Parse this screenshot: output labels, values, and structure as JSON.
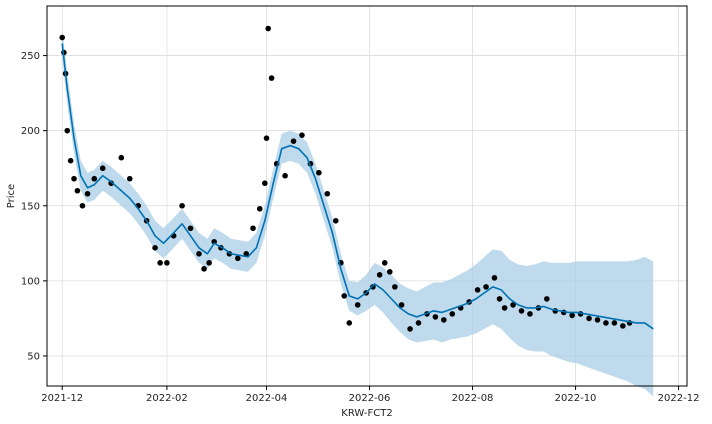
{
  "chart_data": {
    "type": "scatter",
    "title": "",
    "xlabel": "KRW-FCT2",
    "ylabel": "Price",
    "x_tick_labels": [
      "2021-12",
      "2022-02",
      "2022-04",
      "2022-06",
      "2022-08",
      "2022-10",
      "2022-12"
    ],
    "x_tick_values": [
      "2021-12-01",
      "2022-02-01",
      "2022-04-01",
      "2022-06-01",
      "2022-08-01",
      "2022-10-01",
      "2022-12-01"
    ],
    "y_tick_labels": [
      "50",
      "100",
      "150",
      "200",
      "250"
    ],
    "y_tick_values": [
      50,
      100,
      150,
      200,
      250
    ],
    "xlim": [
      "2021-11-22",
      "2022-12-06"
    ],
    "ylim": [
      30,
      283
    ],
    "grid": true,
    "colors": {
      "observed": "#000000",
      "forecast": "#0072B2",
      "interval": "#a8cde6"
    },
    "series": [
      {
        "kind": "observed",
        "x": [
          "2021-12-01",
          "2021-12-02",
          "2021-12-03",
          "2021-12-04",
          "2021-12-06",
          "2021-12-08",
          "2021-12-10",
          "2021-12-13",
          "2021-12-16",
          "2021-12-20",
          "2021-12-25",
          "2021-12-30",
          "2022-01-05",
          "2022-01-10",
          "2022-01-15",
          "2022-01-20",
          "2022-01-25",
          "2022-01-28",
          "2022-02-01",
          "2022-02-05",
          "2022-02-10",
          "2022-02-15",
          "2022-02-20",
          "2022-02-23",
          "2022-02-26",
          "2022-03-01",
          "2022-03-05",
          "2022-03-10",
          "2022-03-15",
          "2022-03-20",
          "2022-03-24",
          "2022-03-28",
          "2022-03-31",
          "2022-04-01",
          "2022-04-02",
          "2022-04-04",
          "2022-04-07",
          "2022-04-12",
          "2022-04-17",
          "2022-04-22",
          "2022-04-27",
          "2022-05-02",
          "2022-05-07",
          "2022-05-12",
          "2022-05-15",
          "2022-05-17",
          "2022-05-20",
          "2022-05-25",
          "2022-05-30",
          "2022-06-03",
          "2022-06-07",
          "2022-06-10",
          "2022-06-13",
          "2022-06-16",
          "2022-06-20",
          "2022-06-25",
          "2022-06-30",
          "2022-07-05",
          "2022-07-10",
          "2022-07-15",
          "2022-07-20",
          "2022-07-25",
          "2022-07-30",
          "2022-08-04",
          "2022-08-09",
          "2022-08-14",
          "2022-08-17",
          "2022-08-20",
          "2022-08-25",
          "2022-08-30",
          "2022-09-04",
          "2022-09-09",
          "2022-09-14",
          "2022-09-19",
          "2022-09-24",
          "2022-09-29",
          "2022-10-04",
          "2022-10-09",
          "2022-10-14",
          "2022-10-19",
          "2022-10-24",
          "2022-10-29",
          "2022-11-02"
        ],
        "y": [
          262,
          252,
          238,
          200,
          180,
          168,
          160,
          150,
          158,
          168,
          175,
          165,
          182,
          168,
          150,
          140,
          122,
          112,
          112,
          130,
          150,
          135,
          118,
          108,
          112,
          126,
          122,
          118,
          115,
          118,
          135,
          148,
          165,
          195,
          268,
          235,
          178,
          170,
          193,
          197,
          178,
          172,
          158,
          140,
          112,
          90,
          72,
          84,
          92,
          96,
          104,
          112,
          106,
          96,
          84,
          68,
          72,
          78,
          76,
          74,
          78,
          82,
          86,
          94,
          96,
          102,
          88,
          82,
          84,
          80,
          78,
          82,
          88,
          80,
          79,
          77,
          78,
          75,
          74,
          72,
          72,
          70,
          72
        ]
      },
      {
        "kind": "forecast",
        "x": [
          "2021-12-01",
          "2021-12-04",
          "2021-12-08",
          "2021-12-12",
          "2021-12-16",
          "2021-12-20",
          "2021-12-25",
          "2021-12-30",
          "2022-01-05",
          "2022-01-10",
          "2022-01-15",
          "2022-01-20",
          "2022-01-25",
          "2022-01-30",
          "2022-02-05",
          "2022-02-10",
          "2022-02-15",
          "2022-02-20",
          "2022-02-25",
          "2022-03-01",
          "2022-03-06",
          "2022-03-11",
          "2022-03-16",
          "2022-03-21",
          "2022-03-26",
          "2022-03-31",
          "2022-04-05",
          "2022-04-10",
          "2022-04-15",
          "2022-04-20",
          "2022-04-25",
          "2022-04-30",
          "2022-05-05",
          "2022-05-10",
          "2022-05-15",
          "2022-05-20",
          "2022-05-25",
          "2022-05-30",
          "2022-06-04",
          "2022-06-09",
          "2022-06-14",
          "2022-06-19",
          "2022-06-24",
          "2022-06-29",
          "2022-07-04",
          "2022-07-09",
          "2022-07-14",
          "2022-07-19",
          "2022-07-24",
          "2022-07-29",
          "2022-08-03",
          "2022-08-08",
          "2022-08-13",
          "2022-08-18",
          "2022-08-23",
          "2022-08-28",
          "2022-09-02",
          "2022-09-07",
          "2022-09-12",
          "2022-09-17",
          "2022-09-22",
          "2022-09-27",
          "2022-10-02",
          "2022-10-07",
          "2022-10-12",
          "2022-10-17",
          "2022-10-22",
          "2022-10-27",
          "2022-11-01",
          "2022-11-06",
          "2022-11-11",
          "2022-11-16"
        ],
        "y": [
          258,
          228,
          195,
          170,
          162,
          164,
          170,
          166,
          160,
          155,
          148,
          140,
          130,
          125,
          132,
          138,
          130,
          122,
          118,
          125,
          122,
          118,
          117,
          116,
          122,
          140,
          165,
          188,
          190,
          188,
          182,
          168,
          150,
          132,
          108,
          90,
          88,
          92,
          98,
          94,
          88,
          82,
          78,
          76,
          78,
          80,
          79,
          81,
          83,
          85,
          88,
          92,
          96,
          94,
          88,
          84,
          82,
          82,
          83,
          81,
          80,
          79,
          79,
          78,
          77,
          76,
          75,
          74,
          73,
          72,
          72,
          68
        ],
        "lower": [
          248,
          218,
          185,
          160,
          152,
          154,
          160,
          156,
          150,
          145,
          138,
          130,
          120,
          115,
          122,
          128,
          120,
          112,
          108,
          115,
          112,
          108,
          107,
          106,
          112,
          130,
          155,
          178,
          180,
          178,
          172,
          158,
          140,
          122,
          98,
          80,
          77,
          80,
          84,
          79,
          72,
          66,
          61,
          59,
          60,
          61,
          59,
          61,
          62,
          63,
          65,
          68,
          71,
          68,
          62,
          57,
          54,
          53,
          53,
          50,
          48,
          46,
          45,
          43,
          41,
          39,
          37,
          35,
          33,
          30,
          28,
          23
        ],
        "upper": [
          268,
          238,
          205,
          180,
          172,
          174,
          180,
          176,
          170,
          165,
          158,
          150,
          140,
          135,
          142,
          148,
          140,
          132,
          128,
          135,
          132,
          128,
          127,
          126,
          132,
          150,
          175,
          198,
          200,
          198,
          192,
          178,
          160,
          142,
          118,
          100,
          99,
          104,
          112,
          109,
          104,
          98,
          95,
          93,
          96,
          99,
          99,
          101,
          104,
          107,
          111,
          116,
          121,
          120,
          114,
          111,
          110,
          111,
          113,
          112,
          112,
          112,
          113,
          113,
          113,
          113,
          113,
          113,
          113,
          114,
          116,
          113
        ]
      }
    ]
  }
}
